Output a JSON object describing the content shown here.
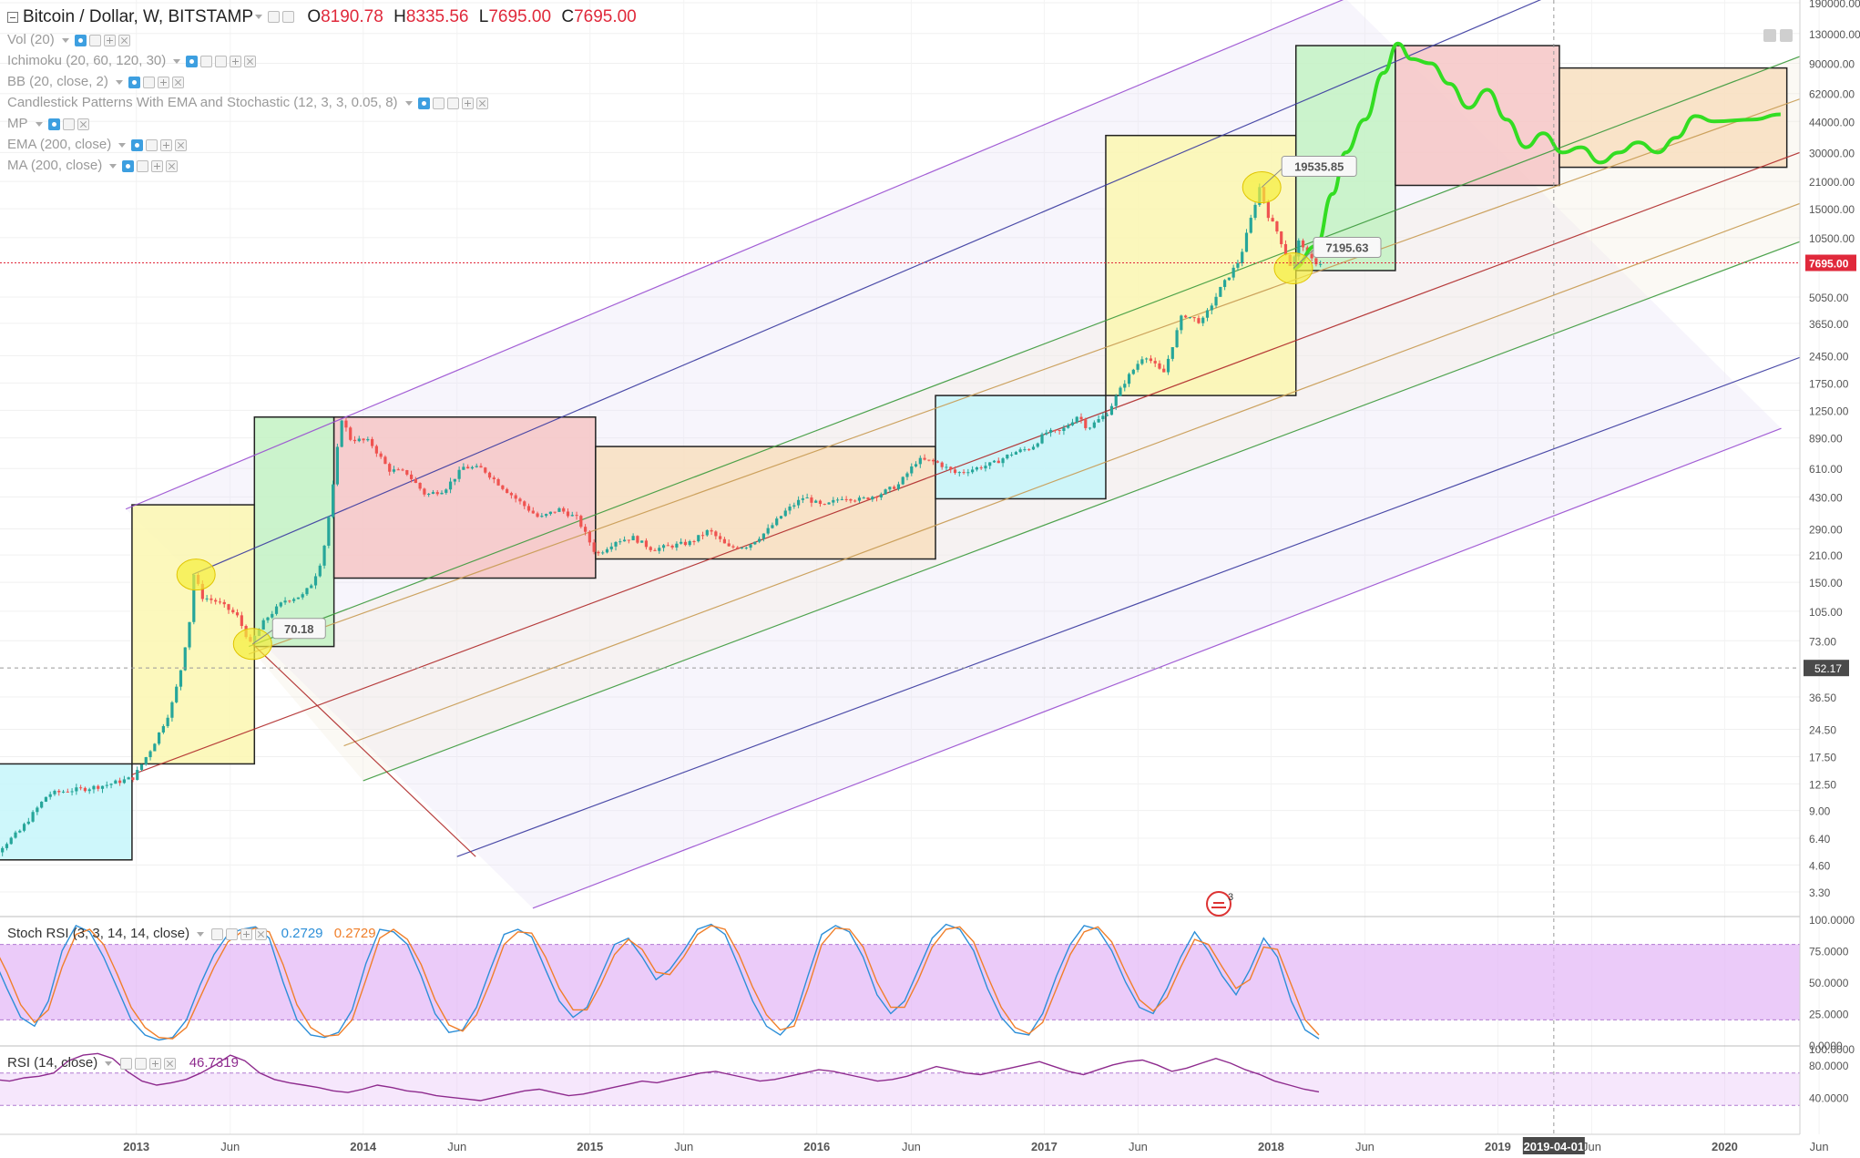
{
  "legend": {
    "symbol": "Bitcoin / Dollar, W, BITSTAMP",
    "ohlc": [
      {
        "k": "O",
        "v": "8190.78"
      },
      {
        "k": "H",
        "v": "8335.56"
      },
      {
        "k": "L",
        "v": "7695.00"
      },
      {
        "k": "C",
        "v": "7695.00"
      }
    ],
    "indicators": [
      "Vol (20)",
      "Ichimoku (20, 60, 120, 30)",
      "BB (20, close, 2)",
      "Candlestick Patterns With EMA and Stochastic (12, 3, 3, 0.05, 8)",
      "MP",
      "EMA (200, close)",
      "MA (200, close)"
    ]
  },
  "colors": {
    "up": "#26a69a",
    "down": "#ef5350",
    "box_yellow": "#fbf7b0",
    "box_green": "#c3f2c3",
    "box_red": "#f6c6c6",
    "box_orange": "#f8dfc0",
    "box_cyan": "#c6f6fa",
    "projection": "#33dd22",
    "last_price": "#e0293b",
    "stoch_k": "#2d8fd8",
    "stoch_d": "#f07f2a",
    "rsi": "#8e2b8e",
    "band_fill": "#e4b9f7"
  },
  "chart_data": [
    {
      "type": "candlestick",
      "title": "Bitcoin / Dollar, W, BITSTAMP",
      "y_scale": "log",
      "price_axis_ticks": [
        "3.30",
        "4.60",
        "6.40",
        "9.00",
        "12.50",
        "17.50",
        "24.50",
        "36.50",
        "52.17",
        "73.00",
        "105.00",
        "150.00",
        "210.00",
        "290.00",
        "430.00",
        "610.00",
        "890.00",
        "1250.00",
        "1750.00",
        "2450.00",
        "3650.00",
        "5050.00",
        "7695.00",
        "10500.00",
        "15000.00",
        "21000.00",
        "30000.00",
        "44000.00",
        "62000.00",
        "90000.00",
        "130000.00",
        "190000.00"
      ],
      "time_axis_ticks": [
        "2013",
        "Jun",
        "2014",
        "Jun",
        "2015",
        "Jun",
        "2016",
        "Jun",
        "2017",
        "Jun",
        "2018",
        "Jun",
        "2019",
        "2019-04-01",
        "Jun",
        "2020",
        "Jun"
      ],
      "last_price_label": "7695.00",
      "crosshair_price_label": "52.17",
      "crosshair_time_label": "2019-04-01",
      "price_path": [
        [
          "2012-04-01",
          5.0
        ],
        [
          "2012-05-15",
          5.1
        ],
        [
          "2012-07-01",
          7.0
        ],
        [
          "2012-08-15",
          11.0
        ],
        [
          "2012-09-15",
          11.5
        ],
        [
          "2012-10-15",
          11.8
        ],
        [
          "2012-11-15",
          12.3
        ],
        [
          "2012-12-31",
          13.5
        ],
        [
          "2013-01-31",
          20.0
        ],
        [
          "2013-02-28",
          31.0
        ],
        [
          "2013-03-15",
          47.0
        ],
        [
          "2013-03-31",
          93.0
        ],
        [
          "2013-04-07",
          165.0
        ],
        [
          "2013-04-21",
          125.0
        ],
        [
          "2013-05-15",
          118.0
        ],
        [
          "2013-06-15",
          100.0
        ],
        [
          "2013-07-07",
          70.18
        ],
        [
          "2013-07-31",
          95.0
        ],
        [
          "2013-08-31",
          120.0
        ],
        [
          "2013-09-30",
          128.0
        ],
        [
          "2013-10-15",
          150.0
        ],
        [
          "2013-10-31",
          205.0
        ],
        [
          "2013-11-15",
          430.0
        ],
        [
          "2013-11-30",
          1150.0
        ],
        [
          "2013-12-15",
          880.0
        ],
        [
          "2014-01-15",
          850.0
        ],
        [
          "2014-02-15",
          600.0
        ],
        [
          "2014-03-15",
          580.0
        ],
        [
          "2014-04-15",
          440.0
        ],
        [
          "2014-05-15",
          470.0
        ],
        [
          "2014-06-15",
          620.0
        ],
        [
          "2014-07-15",
          610.0
        ],
        [
          "2014-08-15",
          490.0
        ],
        [
          "2014-09-15",
          400.0
        ],
        [
          "2014-10-15",
          330.0
        ],
        [
          "2014-11-15",
          370.0
        ],
        [
          "2014-12-15",
          330.0
        ],
        [
          "2015-01-15",
          210.0
        ],
        [
          "2015-02-15",
          250.0
        ],
        [
          "2015-03-15",
          260.0
        ],
        [
          "2015-04-15",
          225.0
        ],
        [
          "2015-05-15",
          235.0
        ],
        [
          "2015-06-15",
          245.0
        ],
        [
          "2015-07-15",
          285.0
        ],
        [
          "2015-08-15",
          230.0
        ],
        [
          "2015-09-15",
          235.0
        ],
        [
          "2015-10-15",
          280.0
        ],
        [
          "2015-11-15",
          360.0
        ],
        [
          "2015-12-15",
          430.0
        ],
        [
          "2016-01-15",
          380.0
        ],
        [
          "2016-02-15",
          430.0
        ],
        [
          "2016-03-15",
          415.0
        ],
        [
          "2016-04-15",
          445.0
        ],
        [
          "2016-05-15",
          500.0
        ],
        [
          "2016-06-15",
          680.0
        ],
        [
          "2016-07-15",
          660.0
        ],
        [
          "2016-08-15",
          575.0
        ],
        [
          "2016-09-15",
          610.0
        ],
        [
          "2016-10-15",
          650.0
        ],
        [
          "2016-11-15",
          740.0
        ],
        [
          "2016-12-15",
          790.0
        ],
        [
          "2017-01-07",
          950.0
        ],
        [
          "2017-01-31",
          960.0
        ],
        [
          "2017-02-28",
          1180.0
        ],
        [
          "2017-03-15",
          1000.0
        ],
        [
          "2017-04-15",
          1200.0
        ],
        [
          "2017-05-15",
          1800.0
        ],
        [
          "2017-06-15",
          2500.0
        ],
        [
          "2017-07-15",
          1950.0
        ],
        [
          "2017-08-15",
          4100.0
        ],
        [
          "2017-09-15",
          3700.0
        ],
        [
          "2017-10-15",
          5600.0
        ],
        [
          "2017-11-15",
          8000.0
        ],
        [
          "2017-12-17",
          19535.85
        ],
        [
          "2017-12-31",
          13800.0
        ],
        [
          "2018-01-15",
          11200.0
        ],
        [
          "2018-02-06",
          7195.63
        ],
        [
          "2018-02-20",
          10500.0
        ],
        [
          "2018-03-05",
          8190.78
        ],
        [
          "2018-03-19",
          7695.0
        ]
      ],
      "projection_path": [
        [
          "2018-02-06",
          7195.63
        ],
        [
          "2018-03-15",
          9500.0
        ],
        [
          "2018-04-10",
          18000.0
        ],
        [
          "2018-05-01",
          30000.0
        ],
        [
          "2018-06-01",
          45000.0
        ],
        [
          "2018-07-01",
          80000.0
        ],
        [
          "2018-07-24",
          115000.0
        ],
        [
          "2018-08-15",
          95000.0
        ],
        [
          "2018-09-15",
          90000.0
        ],
        [
          "2018-10-15",
          70000.0
        ],
        [
          "2018-11-15",
          52000.0
        ],
        [
          "2018-12-15",
          65000.0
        ],
        [
          "2019-01-15",
          45000.0
        ],
        [
          "2019-02-15",
          32000.0
        ],
        [
          "2019-03-15",
          38000.0
        ],
        [
          "2019-04-15",
          30000.0
        ],
        [
          "2019-05-15",
          32000.0
        ],
        [
          "2019-06-15",
          26500.0
        ],
        [
          "2019-07-15",
          30000.0
        ],
        [
          "2019-08-15",
          34000.0
        ],
        [
          "2019-09-15",
          30000.0
        ],
        [
          "2019-10-15",
          36000.0
        ],
        [
          "2019-11-15",
          47000.0
        ],
        [
          "2019-12-15",
          44000.0
        ],
        [
          "2020-02-15",
          45000.0
        ],
        [
          "2020-03-31",
          48000.0
        ]
      ],
      "boxes": [
        {
          "color": "cyan",
          "x0": "2012-04-01",
          "x1": "2012-12-25",
          "y0": 4.9,
          "y1": 16.0
        },
        {
          "color": "yellow",
          "x0": "2012-12-25",
          "x1": "2013-07-10",
          "y0": 16.0,
          "y1": 390.0
        },
        {
          "color": "green",
          "x0": "2013-07-10",
          "x1": "2013-11-15",
          "y0": 68.0,
          "y1": 1150.0
        },
        {
          "color": "red",
          "x0": "2013-11-15",
          "x1": "2015-01-10",
          "y0": 158.0,
          "y1": 1150.0
        },
        {
          "color": "orange",
          "x0": "2015-01-10",
          "x1": "2016-07-10",
          "y0": 200.0,
          "y1": 800.0
        },
        {
          "color": "cyan",
          "x0": "2016-07-10",
          "x1": "2017-04-10",
          "y0": 420.0,
          "y1": 1500.0
        },
        {
          "color": "yellow",
          "x0": "2017-04-10",
          "x1": "2018-02-10",
          "y0": 1500.0,
          "y1": 37000.0
        },
        {
          "color": "green",
          "x0": "2018-02-10",
          "x1": "2018-07-20",
          "y0": 7000.0,
          "y1": 112000.0
        },
        {
          "color": "red",
          "x0": "2018-07-20",
          "x1": "2019-04-10",
          "y0": 20000.0,
          "y1": 112000.0
        },
        {
          "color": "orange",
          "x0": "2019-04-10",
          "x1": "2020-04-10",
          "y0": 25000.0,
          "y1": 85000.0
        }
      ],
      "annotations": [
        {
          "text": "70.18",
          "date": "2013-07-07",
          "price": 70.18
        },
        {
          "text": "19535.85",
          "date": "2017-12-17",
          "price": 19535.85
        },
        {
          "text": "7195.63",
          "date": "2018-02-06",
          "price": 7195.63
        }
      ],
      "pitchfork_lines": [
        {
          "color": "#9a4fd1",
          "from": [
            "2012-12-15",
            370.0
          ],
          "to": [
            "2018-05-01",
            200000.0
          ]
        },
        {
          "color": "#3a3aa0",
          "from": [
            "2013-04-01",
            165.0
          ],
          "to": [
            "2019-03-15",
            200000.0
          ]
        },
        {
          "color": "#3c9a3c",
          "from": [
            "2013-07-01",
            68.0
          ],
          "to": [
            "2020-05-01",
            98000.0
          ]
        },
        {
          "color": "#c89b52",
          "from": [
            "2013-07-01",
            62.0
          ],
          "to": [
            "2020-05-01",
            58000.0
          ]
        },
        {
          "color": "#b02a2a",
          "from": [
            "2012-12-25",
            14.0
          ],
          "to": [
            "2020-05-01",
            30000.0
          ]
        },
        {
          "color": "#c89b52",
          "from": [
            "2013-12-01",
            20.0
          ],
          "to": [
            "2020-05-01",
            16000.0
          ]
        },
        {
          "color": "#3c9a3c",
          "from": [
            "2014-01-01",
            13.0
          ],
          "to": [
            "2020-05-01",
            10000.0
          ]
        },
        {
          "color": "#3a3aa0",
          "from": [
            "2014-06-01",
            5.1
          ],
          "to": [
            "2020-05-01",
            2400.0
          ]
        },
        {
          "color": "#9a4fd1",
          "from": [
            "2014-10-01",
            2.7
          ],
          "to": [
            "2020-04-01",
            1000.0
          ]
        },
        {
          "color": "#b02a2a",
          "from": [
            "2013-07-07",
            70.18
          ],
          "to": [
            "2014-07-01",
            5.1
          ]
        }
      ]
    },
    {
      "type": "line",
      "title": "Stoch RSI (3, 3, 14, 14, close)",
      "ylim": [
        0,
        100
      ],
      "band": [
        20,
        80
      ],
      "ticks": [
        "100.0000",
        "75.0000",
        "50.0000",
        "25.0000",
        "0.0000"
      ],
      "series": [
        {
          "name": "K",
          "value_label": "0.2729",
          "values": [
            95,
            88,
            70,
            45,
            22,
            15,
            35,
            75,
            95,
            90,
            70,
            45,
            20,
            8,
            4,
            6,
            20,
            48,
            72,
            88,
            92,
            94,
            85,
            50,
            20,
            8,
            6,
            10,
            28,
            65,
            92,
            90,
            80,
            55,
            25,
            10,
            12,
            30,
            60,
            88,
            92,
            86,
            60,
            35,
            22,
            30,
            55,
            80,
            85,
            70,
            52,
            60,
            75,
            92,
            96,
            88,
            62,
            35,
            15,
            8,
            20,
            55,
            88,
            95,
            90,
            70,
            40,
            25,
            35,
            60,
            85,
            96,
            92,
            75,
            45,
            22,
            10,
            8,
            25,
            55,
            80,
            95,
            92,
            75,
            50,
            30,
            25,
            45,
            70,
            90,
            75,
            55,
            40,
            60,
            85,
            70,
            35,
            12,
            5
          ]
        },
        {
          "name": "D",
          "value_label": "0.2729",
          "values": [
            90,
            92,
            80,
            58,
            32,
            18,
            28,
            62,
            88,
            92,
            80,
            56,
            30,
            14,
            6,
            5,
            14,
            38,
            62,
            82,
            90,
            93,
            90,
            64,
            32,
            14,
            7,
            8,
            20,
            52,
            85,
            92,
            84,
            64,
            36,
            16,
            11,
            24,
            50,
            80,
            90,
            89,
            70,
            45,
            28,
            28,
            48,
            72,
            84,
            76,
            58,
            56,
            70,
            88,
            95,
            92,
            72,
            46,
            24,
            12,
            15,
            45,
            80,
            93,
            92,
            78,
            50,
            30,
            30,
            52,
            78,
            92,
            94,
            82,
            55,
            30,
            14,
            9,
            18,
            45,
            72,
            90,
            94,
            82,
            58,
            36,
            27,
            38,
            62,
            84,
            80,
            62,
            45,
            52,
            78,
            76,
            48,
            20,
            8
          ]
        }
      ]
    },
    {
      "type": "line",
      "title": "RSI (14, close)",
      "ylim": [
        0,
        100
      ],
      "band": [
        30,
        70
      ],
      "ticks": [
        "100.0000",
        "80.0000",
        "40.0000"
      ],
      "series": [
        {
          "name": "RSI",
          "value_label": "46.7319",
          "values": [
            55,
            58,
            62,
            60,
            64,
            66,
            70,
            85,
            92,
            94,
            88,
            72,
            60,
            55,
            58,
            62,
            70,
            80,
            92,
            85,
            70,
            62,
            58,
            55,
            52,
            48,
            46,
            50,
            55,
            52,
            48,
            46,
            42,
            40,
            38,
            36,
            40,
            44,
            48,
            50,
            46,
            42,
            44,
            48,
            52,
            56,
            60,
            58,
            62,
            66,
            70,
            72,
            68,
            64,
            60,
            62,
            66,
            70,
            74,
            72,
            68,
            64,
            60,
            62,
            66,
            72,
            78,
            74,
            70,
            68,
            72,
            76,
            80,
            84,
            78,
            72,
            68,
            74,
            80,
            84,
            86,
            80,
            72,
            76,
            82,
            88,
            82,
            74,
            68,
            60,
            55,
            50,
            46.7
          ]
        }
      ]
    }
  ]
}
